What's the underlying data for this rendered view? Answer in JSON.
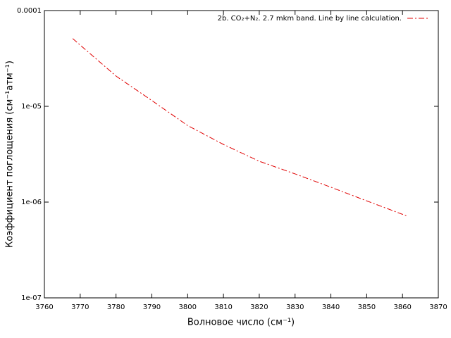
{
  "chart_data": {
    "type": "line",
    "legend_text": "2b. CO₂+N₂. 2.7 mkm band. Line by line calculation.",
    "xlabel": "Волновое число (см⁻¹)",
    "ylabel": "Коэффициент поглощения (см⁻¹атм⁻¹)",
    "x": [
      3767.9,
      3780,
      3790,
      3800,
      3810,
      3820,
      3830,
      3840,
      3850,
      3861.5
    ],
    "series": [
      {
        "name": "2b. CO₂+N₂. 2.7 mkm band. Line by line calculation.",
        "color": "#e00000",
        "values": [
          5.1e-05,
          2.07e-05,
          1.15e-05,
          6.3e-06,
          4e-06,
          2.67e-06,
          1.97e-06,
          1.43e-06,
          1.03e-06,
          7.1e-07
        ]
      }
    ],
    "xlim": [
      3760,
      3870
    ],
    "xticks": [
      3760,
      3770,
      3780,
      3790,
      3800,
      3810,
      3820,
      3830,
      3840,
      3850,
      3860,
      3870
    ],
    "ylim": [
      1e-07,
      0.0001
    ],
    "yticks": [
      {
        "value": 1e-07,
        "label": "1e-07"
      },
      {
        "value": 1e-06,
        "label": "1e-06"
      },
      {
        "value": 1e-05,
        "label": "1e-05"
      },
      {
        "value": 0.0001,
        "label": "0.0001"
      }
    ],
    "ylog": true,
    "legend": "top-right"
  }
}
